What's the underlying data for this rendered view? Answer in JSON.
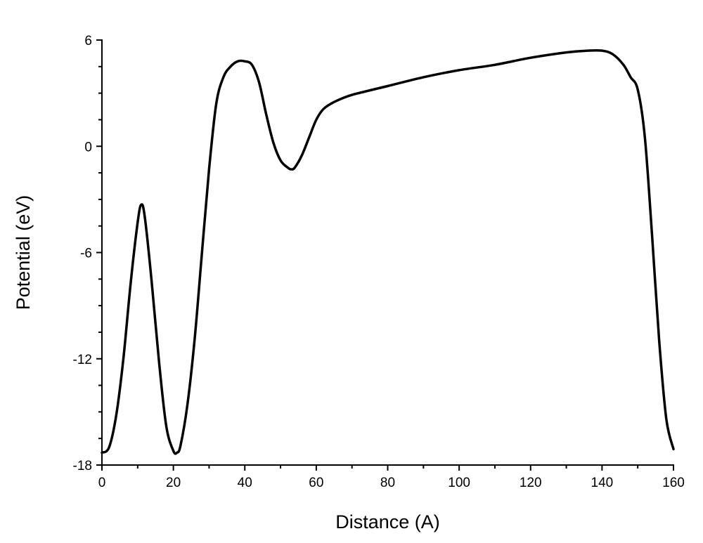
{
  "chart_data": {
    "type": "line",
    "title": "",
    "xlabel": "Distance (A)",
    "ylabel": "Potential (eV)",
    "xlim": [
      0,
      160
    ],
    "ylim": [
      -18,
      6
    ],
    "xticks": [
      0,
      20,
      40,
      60,
      80,
      100,
      120,
      140,
      160
    ],
    "xtick_labels": [
      "0",
      "20",
      "40",
      "60",
      "80",
      "100",
      "120",
      "140",
      "160"
    ],
    "yticks": [
      -18,
      -12,
      -6,
      0,
      6
    ],
    "ytick_labels": [
      "-18",
      "-12",
      "-6",
      "0",
      "6"
    ],
    "grid": false,
    "legend": "none",
    "series": [
      {
        "color": "#000000",
        "x": [
          0,
          2,
          4,
          6,
          8,
          10,
          11,
          12,
          14,
          16,
          18,
          20,
          21,
          22,
          24,
          26,
          28,
          30,
          32,
          34,
          36,
          38,
          40,
          42,
          44,
          46,
          48,
          50,
          52,
          53,
          54,
          56,
          58,
          60,
          62,
          65,
          70,
          80,
          90,
          100,
          110,
          120,
          130,
          136,
          140,
          143,
          146,
          148,
          150,
          152,
          154,
          156,
          158,
          160
        ],
        "y": [
          -17.3,
          -17.0,
          -15.2,
          -12.0,
          -7.8,
          -4.3,
          -3.3,
          -4.0,
          -7.8,
          -12.2,
          -15.8,
          -17.2,
          -17.3,
          -16.9,
          -14.5,
          -10.8,
          -6.0,
          -1.3,
          2.4,
          3.9,
          4.5,
          4.8,
          4.8,
          4.6,
          3.6,
          1.8,
          0.2,
          -0.8,
          -1.2,
          -1.3,
          -1.2,
          -0.5,
          0.5,
          1.5,
          2.1,
          2.5,
          2.9,
          3.4,
          3.9,
          4.3,
          4.6,
          5.0,
          5.3,
          5.4,
          5.4,
          5.2,
          4.6,
          3.9,
          3.2,
          0.5,
          -5.0,
          -11.0,
          -15.4,
          -17.1
        ]
      }
    ]
  }
}
